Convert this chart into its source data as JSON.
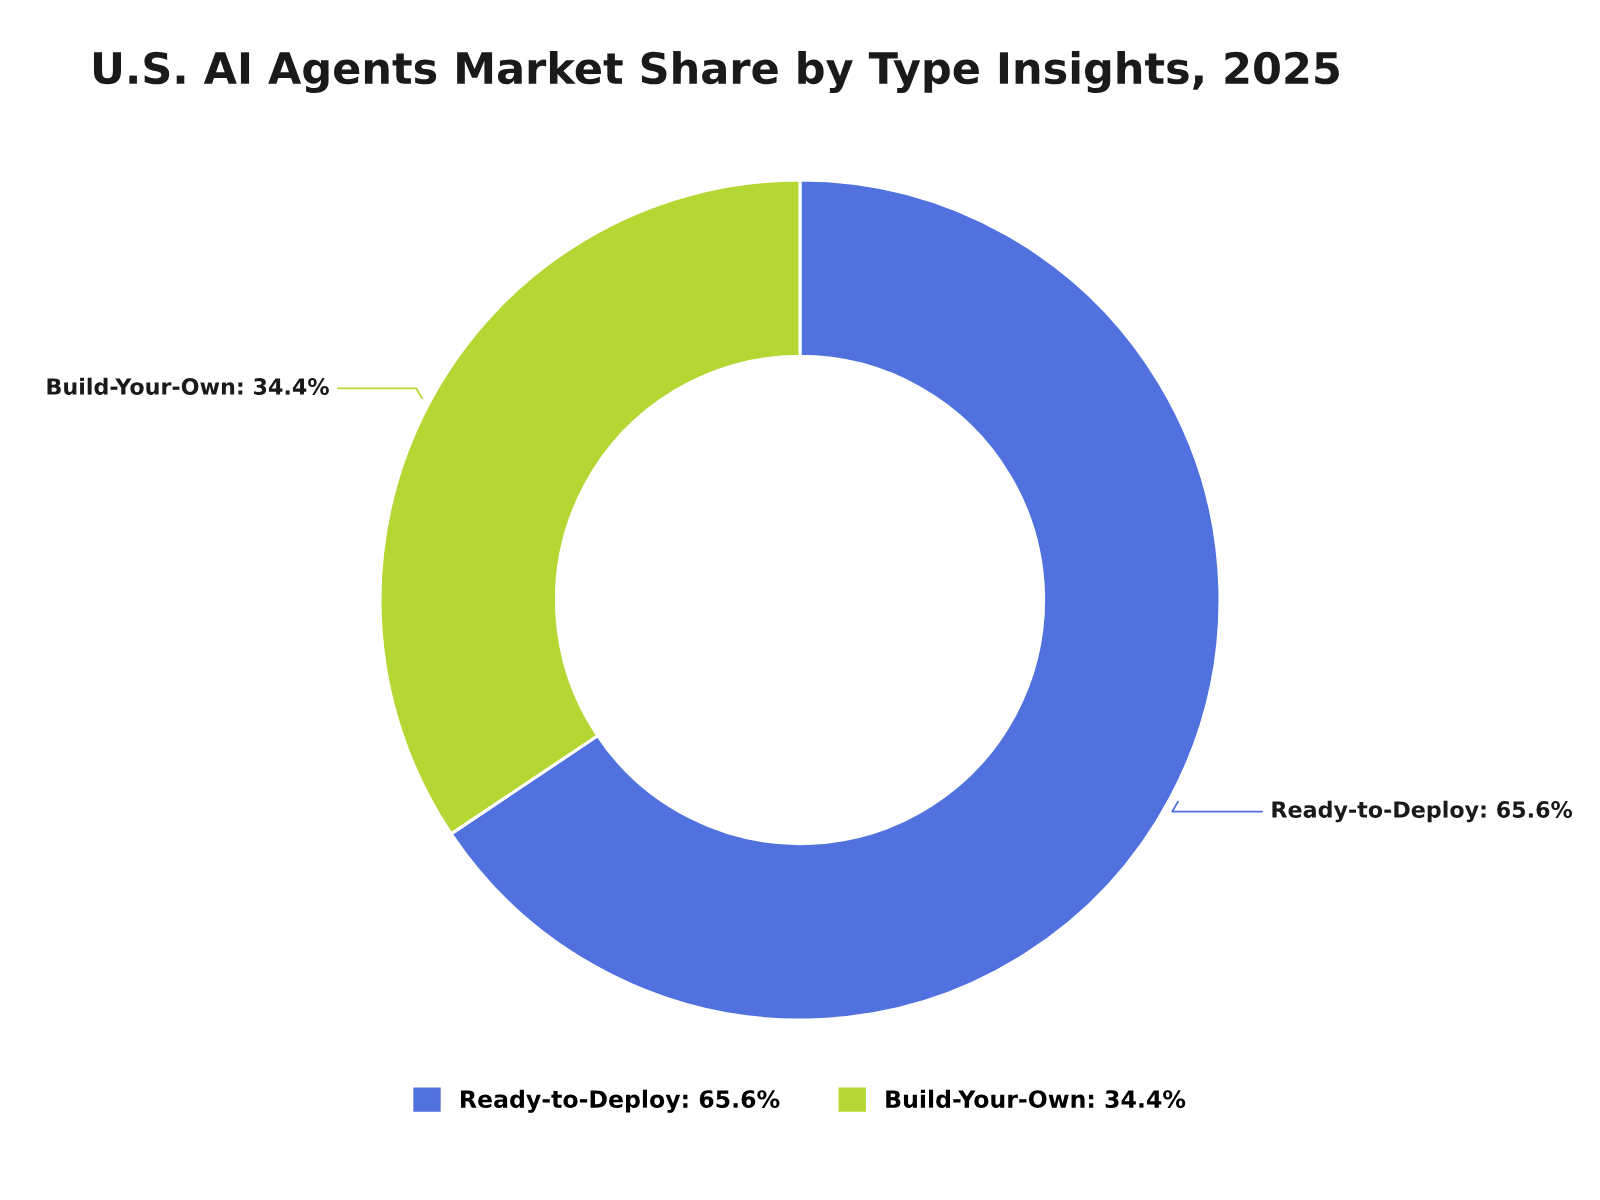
{
  "chart_data": {
    "type": "donut",
    "title": "U.S. AI Agents Market Share by Type Insights, 2025",
    "categories": [
      "Ready-to-Deploy",
      "Build-Your-Own"
    ],
    "values": [
      65.6,
      34.4
    ],
    "value_labels": [
      "65.6%",
      "34.4%"
    ],
    "colors": [
      "#5171de",
      "#b5d733"
    ],
    "legend": "bottom"
  }
}
